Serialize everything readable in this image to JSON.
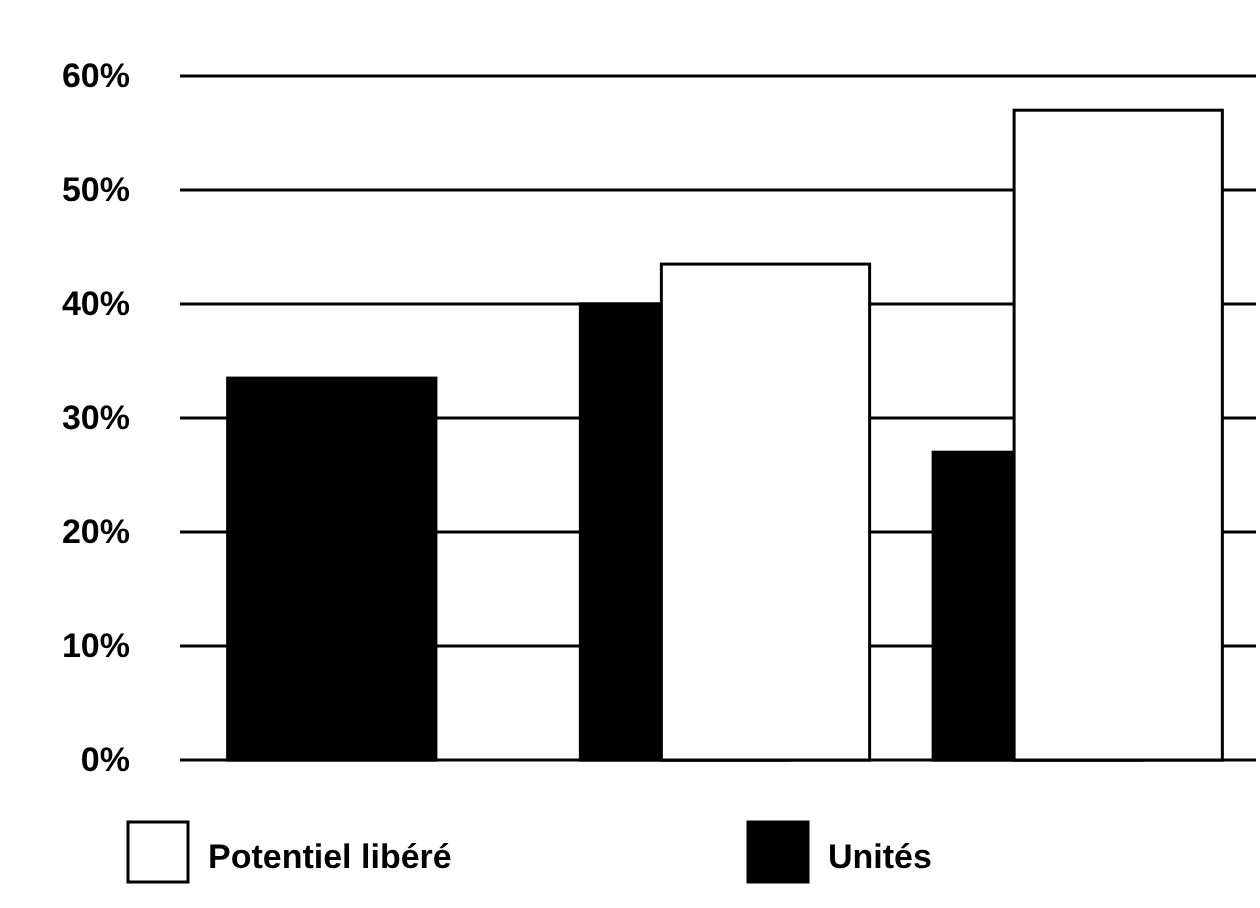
{
  "chart_data": {
    "type": "bar",
    "categories": [
      null,
      null,
      null
    ],
    "series": [
      {
        "name": "Potentiel libéré",
        "color": "#ffffff",
        "values": [
          null,
          43.5,
          57
        ]
      },
      {
        "name": "Unités",
        "color": "#000000",
        "values": [
          33.5,
          40,
          27
        ]
      }
    ],
    "ylim": [
      0,
      60
    ],
    "yticks": [
      {
        "value": 0,
        "label": "0%"
      },
      {
        "value": 10,
        "label": "10%"
      },
      {
        "value": 20,
        "label": "20%"
      },
      {
        "value": 30,
        "label": "30%"
      },
      {
        "value": 40,
        "label": "40%"
      },
      {
        "value": 50,
        "label": "50%"
      },
      {
        "value": 60,
        "label": "60%"
      }
    ],
    "grid": "y",
    "legend": "bottom"
  }
}
